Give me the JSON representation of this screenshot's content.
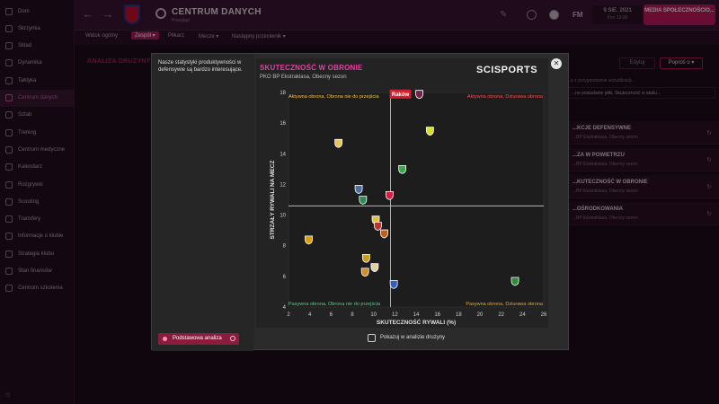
{
  "sidebar": {
    "items": [
      {
        "label": "Dom",
        "active": false
      },
      {
        "label": "Skrzynka",
        "active": false
      },
      {
        "label": "Skład",
        "active": false
      },
      {
        "label": "Dynamika",
        "active": false
      },
      {
        "label": "Taktyka",
        "active": false
      },
      {
        "label": "Centrum danych",
        "active": true
      },
      {
        "label": "Sztab",
        "active": false
      },
      {
        "label": "Trening",
        "active": false
      },
      {
        "label": "Centrum medyczne",
        "active": false
      },
      {
        "label": "Kalendarz",
        "active": false
      },
      {
        "label": "Rozgrywki",
        "active": false
      },
      {
        "label": "Scouting",
        "active": false
      },
      {
        "label": "Transfery",
        "active": false
      },
      {
        "label": "Informacje o klubie",
        "active": false
      },
      {
        "label": "Strategia klubu",
        "active": false
      },
      {
        "label": "Stan finansów",
        "active": false
      },
      {
        "label": "Centrum szkolenia",
        "active": false
      }
    ],
    "bottom": "IS"
  },
  "header": {
    "title": "CENTRUM DANYCH",
    "subtitle": "Przegląd",
    "lang": "FM",
    "date_line1": "9 SIE. 2021",
    "date_line2": "Pon 19:00",
    "media_button": "MEDIA SPOŁECZNOŚCIO..."
  },
  "tabs": [
    {
      "label": "Widok ogólny",
      "active": false
    },
    {
      "label": "Zespół ▾",
      "active": true
    },
    {
      "label": "Piłkarz",
      "active": false
    },
    {
      "label": "Mecze ▾",
      "active": false
    },
    {
      "label": "Następny przeciwnik ▾",
      "active": false
    }
  ],
  "page": {
    "title": "ANALIZA DRUŻYNY",
    "edit_label": "Edytuj",
    "propose_label": "Poproś o ▾",
    "note": "...ę z przygotowanie wizualizacji...",
    "select_text": "...ne posiadanie piłki, Skuteczność w ataku...",
    "items": [
      {
        "title": "...KCJE DEFENSYWNE",
        "sub": "...BP Ekstraklasa, Obecny sezon"
      },
      {
        "title": "...ZA W POWIETRZU",
        "sub": "...BP Ekstraklasa, Obecny sezon"
      },
      {
        "title": "...KUTECZNOŚĆ W OBRONIE",
        "sub": "...BP Ekstraklasa, Obecny sezon"
      },
      {
        "title": "...OŚRODKOWANIA",
        "sub": "...BP Ekstraklasa, Obecny sezon"
      }
    ]
  },
  "modal": {
    "description": "Nasze statystyki produktywności w defensywie są bardzo interesujące.",
    "chart_title": "SKUTECZNOŚĆ W OBRONIE",
    "chart_subtitle": "PKO BP Ekstraklasa, Obecny sezon",
    "brand": "SCISPORTS",
    "basic_button": "Podstawowa analiza",
    "checkbox_label": "Pokazuj w analizie drużyny"
  },
  "colors": {
    "accent": "#b01d5e",
    "chart_title": "#e040a0",
    "quad_top_left": "#f5c242",
    "quad_top_right": "#ff4d4d",
    "quad_bottom_left": "#3ddc84",
    "quad_bottom_right": "#f5a623"
  },
  "chart_data": {
    "type": "scatter",
    "xlabel": "SKUTECZNOŚĆ RYWALI (%)",
    "ylabel": "STRZAŁY RYWALI NA MECZ",
    "xlim": [
      2,
      26
    ],
    "ylim": [
      4,
      18
    ],
    "xticks": [
      2,
      4,
      6,
      8,
      10,
      12,
      14,
      16,
      18,
      20,
      22,
      24,
      26
    ],
    "yticks": [
      4,
      6,
      8,
      10,
      12,
      14,
      16,
      18
    ],
    "reference_x": 11.6,
    "reference_y": 10.6,
    "quadrant_labels": {
      "top_left": "Aktywna obrona, Obrona nie do przejścia",
      "top_right": "Aktywna obrona, Dziurawa obrona",
      "bottom_left": "Pasywna obrona, Obrona nie do przejścia",
      "bottom_right": "Pasywna obrona, Dziurawa obrona"
    },
    "highlight": {
      "label": "Raków",
      "x": 14.3,
      "y": 17.9
    },
    "points": [
      {
        "x": 14.3,
        "y": 17.9,
        "color": "#7a1f4a",
        "highlight": true
      },
      {
        "x": 6.7,
        "y": 14.7,
        "color": "#e6c65a"
      },
      {
        "x": 15.3,
        "y": 15.5,
        "color": "#d8e020"
      },
      {
        "x": 12.7,
        "y": 13.0,
        "color": "#3aa84a"
      },
      {
        "x": 8.6,
        "y": 11.7,
        "color": "#4a6fa0"
      },
      {
        "x": 9.0,
        "y": 11.0,
        "color": "#2e8b57"
      },
      {
        "x": 11.5,
        "y": 11.3,
        "color": "#d02040"
      },
      {
        "x": 10.2,
        "y": 9.7,
        "color": "#e0c040"
      },
      {
        "x": 10.4,
        "y": 9.3,
        "color": "#c03030"
      },
      {
        "x": 11.0,
        "y": 8.8,
        "color": "#c06020"
      },
      {
        "x": 3.9,
        "y": 8.4,
        "color": "#d4a010"
      },
      {
        "x": 9.3,
        "y": 7.2,
        "color": "#c0a020"
      },
      {
        "x": 10.1,
        "y": 6.6,
        "color": "#e0d0a0"
      },
      {
        "x": 9.2,
        "y": 6.3,
        "color": "#d09020"
      },
      {
        "x": 11.9,
        "y": 5.5,
        "color": "#3060c0"
      },
      {
        "x": 23.3,
        "y": 5.7,
        "color": "#2e8b3a"
      }
    ]
  }
}
